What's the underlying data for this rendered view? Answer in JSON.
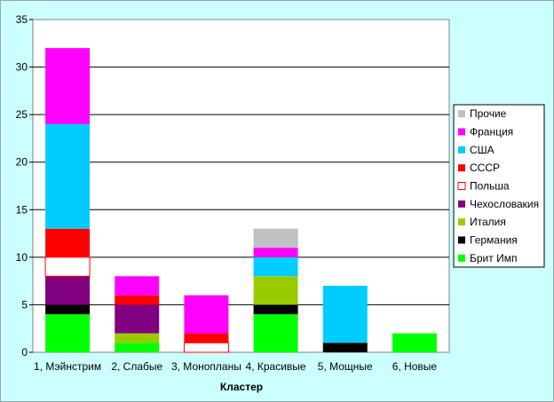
{
  "chart_data": {
    "type": "bar",
    "stacked": true,
    "title": "",
    "xlabel": "Кластер",
    "ylabel": "",
    "ylim": [
      0,
      35
    ],
    "y_ticks": [
      0,
      5,
      10,
      15,
      20,
      25,
      30,
      35
    ],
    "grid": "horizontal",
    "legend_position": "right",
    "categories": [
      "1, Мэйнстрим",
      "2, Слабые",
      "3, Монопланы",
      "4, Красивые",
      "5, Мощные",
      "6, Новые"
    ],
    "series": [
      {
        "name": "Брит Имп",
        "color": "#00ff00",
        "values": [
          4,
          1,
          0,
          4,
          0,
          2
        ]
      },
      {
        "name": "Германия",
        "color": "#000000",
        "values": [
          1,
          0,
          0,
          1,
          1,
          0
        ]
      },
      {
        "name": "Италия",
        "color": "#99cc00",
        "values": [
          0,
          1,
          0,
          3,
          0,
          0
        ]
      },
      {
        "name": "Чехословакия",
        "color": "#800080",
        "values": [
          3,
          3,
          0,
          0,
          0,
          0
        ]
      },
      {
        "name": "Польша",
        "color": "#ffffff",
        "stroke": "#ff0000",
        "values": [
          2,
          0,
          1,
          0,
          0,
          0
        ]
      },
      {
        "name": "СССР",
        "color": "#ff0000",
        "values": [
          3,
          1,
          1,
          0,
          0,
          0
        ]
      },
      {
        "name": "США",
        "color": "#00ccff",
        "values": [
          11,
          0,
          0,
          2,
          6,
          0
        ]
      },
      {
        "name": "Франция",
        "color": "#ff00ff",
        "values": [
          8,
          2,
          4,
          1,
          0,
          0
        ]
      },
      {
        "name": "Прочие",
        "color": "#c0c0c0",
        "values": [
          0,
          0,
          0,
          2,
          0,
          0
        ]
      }
    ]
  }
}
